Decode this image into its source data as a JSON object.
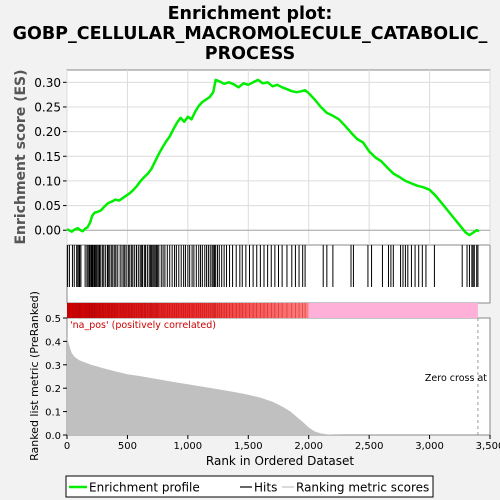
{
  "chart_data": {
    "type": "line",
    "title": "Enrichment plot:\nGOBP_CELLULAR_MACROMOLECULE_CATABOLIC_\nPROCESS",
    "title_lines": [
      "Enrichment plot:",
      "GOBP_CELLULAR_MACROMOLECULE_CATABOLIC_",
      "PROCESS"
    ],
    "xlabel": "Rank in Ordered Dataset",
    "xlim": [
      0,
      3500
    ],
    "x_ticks": [
      0,
      500,
      1000,
      1500,
      2000,
      2500,
      3000,
      3500
    ],
    "x_tick_labels": [
      "0",
      "500",
      "1,000",
      "1,500",
      "2,000",
      "2,500",
      "3,000",
      "3,500"
    ],
    "top_panel": {
      "ylabel": "Enrichment score (ES)",
      "ylim": [
        -0.03,
        0.325
      ],
      "y_ticks": [
        0.0,
        0.05,
        0.1,
        0.15,
        0.2,
        0.25,
        0.3
      ],
      "y_tick_labels": [
        "0.00",
        "0.05",
        "0.10",
        "0.15",
        "0.20",
        "0.25",
        "0.30"
      ],
      "grid": true,
      "series": [
        {
          "name": "Enrichment profile",
          "color": "#00ee00",
          "x": [
            0,
            40,
            60,
            90,
            110,
            130,
            150,
            170,
            190,
            210,
            230,
            250,
            280,
            310,
            340,
            370,
            400,
            430,
            460,
            490,
            520,
            550,
            580,
            610,
            640,
            670,
            700,
            730,
            760,
            790,
            820,
            850,
            880,
            910,
            940,
            970,
            1000,
            1030,
            1060,
            1090,
            1120,
            1150,
            1180,
            1210,
            1230,
            1260,
            1300,
            1340,
            1380,
            1420,
            1460,
            1500,
            1540,
            1580,
            1620,
            1660,
            1700,
            1740,
            1780,
            1820,
            1860,
            1900,
            1940,
            1970,
            2000,
            2050,
            2100,
            2150,
            2200,
            2250,
            2300,
            2350,
            2400,
            2450,
            2500,
            2550,
            2600,
            2650,
            2700,
            2750,
            2800,
            2850,
            2900,
            2950,
            3000,
            3050,
            3100,
            3150,
            3200,
            3250,
            3300,
            3330,
            3360,
            3390,
            3410
          ],
          "y": [
            0.002,
            -0.003,
            0.001,
            0.004,
            0.0,
            -0.002,
            0.003,
            0.006,
            0.015,
            0.03,
            0.036,
            0.037,
            0.04,
            0.048,
            0.055,
            0.058,
            0.062,
            0.06,
            0.065,
            0.07,
            0.075,
            0.082,
            0.09,
            0.1,
            0.108,
            0.115,
            0.125,
            0.14,
            0.155,
            0.168,
            0.18,
            0.19,
            0.205,
            0.218,
            0.228,
            0.22,
            0.23,
            0.225,
            0.24,
            0.252,
            0.26,
            0.265,
            0.27,
            0.28,
            0.305,
            0.302,
            0.297,
            0.3,
            0.296,
            0.29,
            0.298,
            0.295,
            0.3,
            0.305,
            0.298,
            0.3,
            0.292,
            0.295,
            0.29,
            0.286,
            0.282,
            0.28,
            0.282,
            0.284,
            0.278,
            0.265,
            0.25,
            0.238,
            0.232,
            0.225,
            0.212,
            0.198,
            0.185,
            0.178,
            0.16,
            0.148,
            0.14,
            0.127,
            0.115,
            0.108,
            0.1,
            0.095,
            0.09,
            0.087,
            0.082,
            0.07,
            0.055,
            0.04,
            0.025,
            0.01,
            -0.005,
            -0.01,
            -0.005,
            0.0,
            -0.002
          ]
        }
      ]
    },
    "hits_panel": {
      "series_name": "Hits",
      "color": "#000000",
      "positions": [
        5,
        20,
        45,
        60,
        80,
        90,
        100,
        105,
        115,
        150,
        165,
        175,
        185,
        190,
        200,
        205,
        210,
        215,
        225,
        230,
        235,
        245,
        255,
        265,
        270,
        280,
        295,
        305,
        320,
        335,
        345,
        355,
        370,
        380,
        395,
        405,
        420,
        440,
        455,
        470,
        480,
        495,
        510,
        520,
        535,
        545,
        560,
        575,
        590,
        605,
        615,
        625,
        640,
        650,
        665,
        680,
        690,
        700,
        710,
        720,
        730,
        740,
        750,
        760,
        780,
        795,
        810,
        830,
        850,
        870,
        890,
        905,
        925,
        945,
        965,
        980,
        1000,
        1015,
        1035,
        1050,
        1070,
        1090,
        1105,
        1120,
        1140,
        1155,
        1170,
        1185,
        1200,
        1210,
        1220,
        1230,
        1245,
        1260,
        1280,
        1300,
        1320,
        1345,
        1370,
        1400,
        1430,
        1450,
        1480,
        1510,
        1540,
        1570,
        1600,
        1630,
        1660,
        1690,
        1720,
        1750,
        1780,
        1820,
        1860,
        1890,
        1920,
        1950,
        1970,
        2120,
        2150,
        2200,
        2350,
        2370,
        2490,
        2520,
        2610,
        2660,
        2680,
        2700,
        2760,
        2780,
        2800,
        2820,
        2850,
        2880,
        2910,
        2940,
        2970,
        3040,
        3270,
        3310,
        3330,
        3350,
        3360,
        3370,
        3390,
        3400
      ]
    },
    "color_bar": {
      "label": "'na_pos' (positively correlated)",
      "label_color": "#cc0000",
      "positive_color": "#dd0000",
      "negative_color": "#ffb0d8",
      "zero_rank": 2000
    },
    "bottom_panel": {
      "ylabel": "Ranked list metric (PreRanked)",
      "ylim": [
        0,
        0.5
      ],
      "y_ticks": [
        0.0,
        0.1,
        0.2,
        0.3,
        0.4,
        0.5
      ],
      "y_tick_labels": [
        "0.0",
        "0.1",
        "0.2",
        "0.3",
        "0.4",
        "0.5"
      ],
      "series_name": "Ranking metric scores",
      "fill_color": "#c0c0c0",
      "x": [
        0,
        20,
        40,
        60,
        100,
        150,
        200,
        300,
        400,
        500,
        600,
        700,
        800,
        900,
        1000,
        1100,
        1200,
        1300,
        1400,
        1500,
        1600,
        1700,
        1750,
        1800,
        1850,
        1900,
        1950,
        2000,
        2050,
        2100,
        2150,
        2200,
        2300,
        2500,
        3000,
        3400
      ],
      "y": [
        0.42,
        0.38,
        0.35,
        0.335,
        0.32,
        0.31,
        0.3,
        0.285,
        0.272,
        0.26,
        0.252,
        0.243,
        0.234,
        0.225,
        0.217,
        0.208,
        0.2,
        0.191,
        0.182,
        0.172,
        0.16,
        0.142,
        0.13,
        0.116,
        0.1,
        0.078,
        0.056,
        0.032,
        0.015,
        0.007,
        0.003,
        0.001,
        0.0,
        0.0,
        0.0,
        0.0
      ],
      "zero_cross": {
        "label": "Zero cross at",
        "rank": 3400
      }
    },
    "legend": {
      "placement": "bottom",
      "items": [
        {
          "label": "Enrichment profile",
          "color": "#00ee00"
        },
        {
          "label": "Hits",
          "color": "#000000"
        },
        {
          "label": "Ranking metric scores",
          "color": "#c0c0c0"
        }
      ]
    }
  }
}
